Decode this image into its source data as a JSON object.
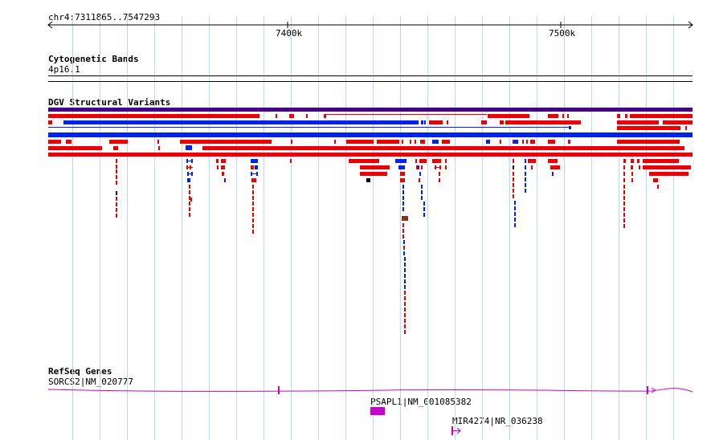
{
  "browser": {
    "region": "chr4:7311865..7547293",
    "scale_labels": [
      "7400k",
      "7500k"
    ]
  },
  "cytoband_track": {
    "title": "Cytogenetic Bands",
    "band": "4p16.1"
  },
  "dgv_track": {
    "title": "DGV Structural Variants",
    "colors": {
      "loss": "#ee0000",
      "gain": "#0022ee",
      "inversion": "#000000",
      "complex": "#883311",
      "header": "#440088"
    }
  },
  "refseq_track": {
    "title": "RefSeq Genes",
    "genes": [
      {
        "label": "SORCS2|NM_020777"
      },
      {
        "label": "PSAPL1|NM_001085382"
      },
      {
        "label": "MIR4274|NR_036238"
      }
    ],
    "colors": {
      "gene": "#cc00cc"
    }
  }
}
